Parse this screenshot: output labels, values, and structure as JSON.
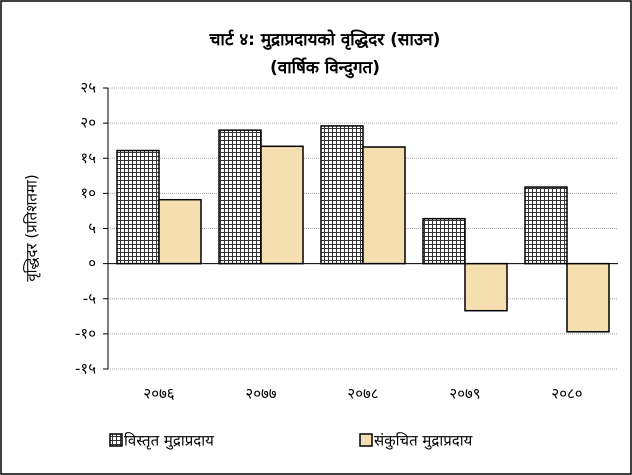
{
  "chart_data": {
    "type": "bar",
    "title": "चार्ट ४: मुद्राप्रदायको वृद्धिदर (साउन)",
    "subtitle": "(वार्षिक विन्दुगत)",
    "y_label": "वृद्धिदर (प्रतिशतमा)",
    "categories": [
      "२०७६",
      "२०७७",
      "२०७८",
      "२०७९",
      "२०८०"
    ],
    "series": [
      {
        "name": "विस्तृत मुद्राप्रदाय",
        "color": "#333333",
        "values": [
          16.1,
          19.0,
          19.6,
          6.4,
          10.9
        ]
      },
      {
        "name": "संकुचित मुद्राप्रदाय",
        "color": "#f5dfb0",
        "values": [
          9.1,
          16.7,
          16.6,
          -6.7,
          -9.7
        ]
      }
    ],
    "ylim": [
      -15,
      25
    ],
    "yticks": [
      {
        "value": -15,
        "label": "-१५"
      },
      {
        "value": -10,
        "label": "-१०"
      },
      {
        "value": -5,
        "label": "-५"
      },
      {
        "value": 0,
        "label": "०"
      },
      {
        "value": 5,
        "label": "५"
      },
      {
        "value": 10,
        "label": "१०"
      },
      {
        "value": 15,
        "label": "१५"
      },
      {
        "value": 20,
        "label": "२०"
      },
      {
        "value": 25,
        "label": "२५"
      }
    ],
    "grid": true
  }
}
